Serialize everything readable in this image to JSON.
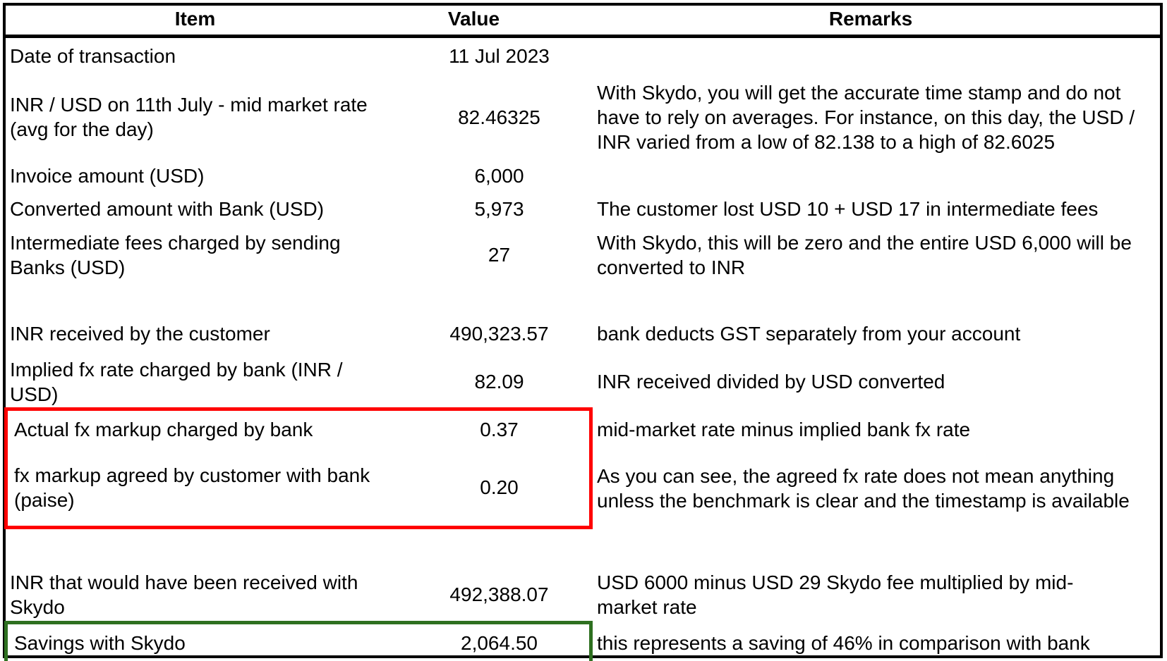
{
  "header": {
    "item": "Item",
    "value": "Value",
    "remarks": "Remarks"
  },
  "rows": [
    {
      "item": "Date of transaction",
      "value": "11 Jul 2023",
      "remarks": ""
    },
    {
      "item": "INR / USD on 11th July - mid market rate (avg for the day)",
      "value": "82.46325",
      "remarks": "With Skydo, you will get the accurate time stamp and do not have to rely on averages. For instance, on this day, the USD / INR varied from a low of 82.138 to a high of 82.6025"
    },
    {
      "item": "Invoice amount (USD)",
      "value": "6,000",
      "remarks": ""
    },
    {
      "item": "Converted amount with Bank (USD)",
      "value": "5,973",
      "remarks": "The customer lost USD 10 + USD 17 in intermediate fees"
    },
    {
      "item": "Intermediate fees charged by sending Banks (USD)",
      "value": "27",
      "remarks": "With Skydo, this will be zero and the entire USD 6,000 will be converted to INR"
    },
    {
      "item": "INR received by the customer",
      "value": "490,323.57",
      "remarks": "bank deducts GST separately from your account"
    },
    {
      "item": "Implied fx rate charged by bank (INR / USD)",
      "value": "82.09",
      "remarks": "INR received divided by USD converted"
    },
    {
      "item": "Actual fx markup charged by bank",
      "value": "0.37",
      "remarks": "mid-market rate minus implied bank fx rate"
    },
    {
      "item": "fx markup agreed by customer with bank (paise)",
      "value": "0.20",
      "remarks": "As you can see, the agreed fx rate does not mean anything unless the benchmark is clear and the timestamp is available"
    },
    {
      "item": "INR that would have been received with Skydo",
      "value": "492,388.07",
      "remarks": "USD 6000 minus USD 29 Skydo fee multiplied by mid-market rate"
    },
    {
      "item": "Savings with Skydo",
      "value": "2,064.50",
      "remarks": "this represents a saving of 46% in comparison with bank"
    }
  ],
  "highlights": {
    "red": "#ff0000",
    "green": "#2e7020"
  }
}
